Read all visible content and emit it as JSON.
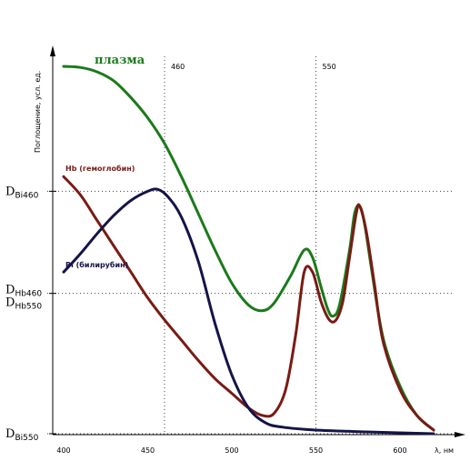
{
  "chart_data": {
    "type": "line",
    "xlabel": "λ, нм",
    "ylabel": "Поглощение, усл. ед.",
    "xlim": [
      400,
      620
    ],
    "x_ticks": [
      "400",
      "450",
      "500",
      "550",
      "600"
    ],
    "ref_lines": [
      {
        "x": 460,
        "label": "460"
      },
      {
        "x": 550,
        "label": "550"
      }
    ],
    "y_markers": [
      {
        "base": "D",
        "sub": "Bi460",
        "level": 0.66
      },
      {
        "base": "D",
        "sub": "Hb460",
        "level": 0.382
      },
      {
        "base": "D",
        "sub": "Hb550",
        "level": 0.382
      },
      {
        "base": "D",
        "sub": "Bi550",
        "level": 0.0
      }
    ],
    "series": [
      {
        "name": "плазма",
        "color": "#1a7a1a",
        "points": [
          [
            400,
            1.0
          ],
          [
            410,
            0.997
          ],
          [
            420,
            0.985
          ],
          [
            430,
            0.96
          ],
          [
            440,
            0.915
          ],
          [
            450,
            0.86
          ],
          [
            460,
            0.79
          ],
          [
            470,
            0.7
          ],
          [
            480,
            0.6
          ],
          [
            490,
            0.5
          ],
          [
            500,
            0.41
          ],
          [
            510,
            0.35
          ],
          [
            518,
            0.335
          ],
          [
            525,
            0.355
          ],
          [
            535,
            0.43
          ],
          [
            543,
            0.5
          ],
          [
            548,
            0.48
          ],
          [
            553,
            0.4
          ],
          [
            557,
            0.34
          ],
          [
            560,
            0.32
          ],
          [
            564,
            0.35
          ],
          [
            570,
            0.5
          ],
          [
            573,
            0.6
          ],
          [
            576,
            0.62
          ],
          [
            579,
            0.57
          ],
          [
            583,
            0.45
          ],
          [
            590,
            0.26
          ],
          [
            600,
            0.13
          ],
          [
            610,
            0.05
          ],
          [
            620,
            0.01
          ]
        ]
      },
      {
        "name": "Hb (гемоглобин)",
        "color": "#7a1a14",
        "points": [
          [
            400,
            0.7
          ],
          [
            410,
            0.65
          ],
          [
            420,
            0.58
          ],
          [
            430,
            0.51
          ],
          [
            440,
            0.44
          ],
          [
            450,
            0.37
          ],
          [
            460,
            0.31
          ],
          [
            470,
            0.255
          ],
          [
            480,
            0.2
          ],
          [
            490,
            0.15
          ],
          [
            500,
            0.11
          ],
          [
            510,
            0.07
          ],
          [
            518,
            0.05
          ],
          [
            525,
            0.055
          ],
          [
            532,
            0.12
          ],
          [
            538,
            0.27
          ],
          [
            543,
            0.44
          ],
          [
            548,
            0.44
          ],
          [
            553,
            0.36
          ],
          [
            558,
            0.31
          ],
          [
            562,
            0.31
          ],
          [
            566,
            0.36
          ],
          [
            570,
            0.48
          ],
          [
            574,
            0.6
          ],
          [
            576,
            0.62
          ],
          [
            580,
            0.55
          ],
          [
            585,
            0.4
          ],
          [
            590,
            0.25
          ],
          [
            600,
            0.12
          ],
          [
            610,
            0.05
          ],
          [
            620,
            0.01
          ]
        ]
      },
      {
        "name": "Bi (билирубин)",
        "color": "#14144a",
        "points": [
          [
            400,
            0.44
          ],
          [
            410,
            0.49
          ],
          [
            420,
            0.545
          ],
          [
            430,
            0.595
          ],
          [
            440,
            0.635
          ],
          [
            450,
            0.66
          ],
          [
            456,
            0.665
          ],
          [
            462,
            0.645
          ],
          [
            470,
            0.59
          ],
          [
            480,
            0.47
          ],
          [
            490,
            0.3
          ],
          [
            500,
            0.16
          ],
          [
            510,
            0.07
          ],
          [
            520,
            0.03
          ],
          [
            530,
            0.018
          ],
          [
            550,
            0.01
          ],
          [
            580,
            0.005
          ],
          [
            620,
            0.0
          ]
        ]
      }
    ],
    "series_labels": {
      "plasma": "плазма",
      "hb": "Hb (гемоглобин)",
      "bi": "Bi (билирубин)"
    }
  }
}
